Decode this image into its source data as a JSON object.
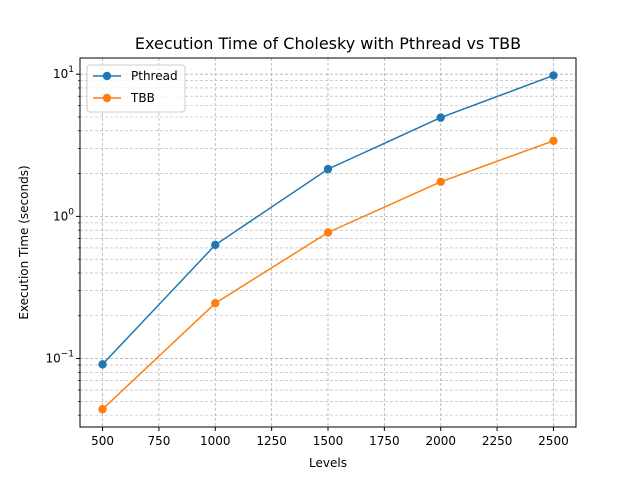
{
  "chart_data": {
    "type": "line",
    "title": "Execution Time of Cholesky with Pthread vs TBB",
    "xlabel": "Levels",
    "ylabel": "Execution Time (seconds)",
    "yscale": "log",
    "xlim": [
      400,
      2600
    ],
    "ylim": [
      0.033,
      13
    ],
    "grid": true,
    "legend_position": "top-left",
    "x": [
      500,
      1000,
      1500,
      2000,
      2500
    ],
    "x_ticks": [
      500,
      750,
      1000,
      1250,
      1500,
      1750,
      2000,
      2250,
      2500
    ],
    "y_ticks": [
      {
        "value": 0.1,
        "base": "10",
        "exp": "−1"
      },
      {
        "value": 1,
        "base": "10",
        "exp": "0"
      },
      {
        "value": 10,
        "base": "10",
        "exp": "1"
      }
    ],
    "series": [
      {
        "name": "Pthread",
        "color": "#1f77b4",
        "values": [
          0.091,
          0.63,
          2.15,
          4.95,
          9.8
        ]
      },
      {
        "name": "TBB",
        "color": "#ff7f0e",
        "values": [
          0.044,
          0.245,
          0.77,
          1.75,
          3.4
        ]
      }
    ]
  }
}
